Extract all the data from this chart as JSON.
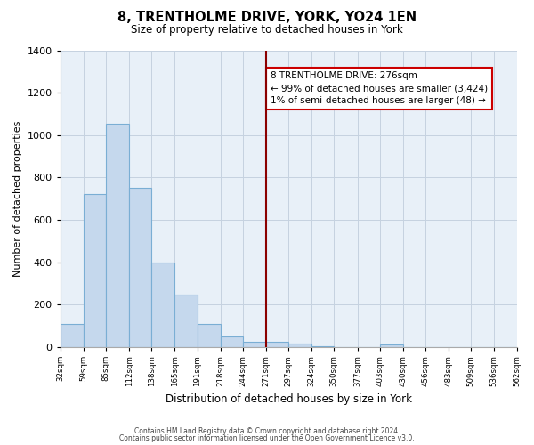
{
  "title": "8, TRENTHOLME DRIVE, YORK, YO24 1EN",
  "subtitle": "Size of property relative to detached houses in York",
  "xlabel": "Distribution of detached houses by size in York",
  "ylabel": "Number of detached properties",
  "bar_color": "#c5d8ed",
  "bar_edge_color": "#7aaed4",
  "background_color": "#e8f0f8",
  "grid_color": "#c5d2e0",
  "bins": [
    32,
    59,
    85,
    112,
    138,
    165,
    191,
    218,
    244,
    271,
    297,
    324,
    350,
    377,
    403,
    430,
    456,
    483,
    509,
    536,
    562
  ],
  "values": [
    110,
    720,
    1055,
    750,
    400,
    245,
    110,
    50,
    25,
    25,
    15,
    5,
    0,
    0,
    10,
    0,
    0,
    0,
    0,
    0
  ],
  "property_line_x": 271,
  "property_line_color": "#8b0000",
  "annotation_line1": "8 TRENTHOLME DRIVE: 276sqm",
  "annotation_line2": "← 99% of detached houses are smaller (3,424)",
  "annotation_line3": "1% of semi-detached houses are larger (48) →",
  "annotation_box_color": "#ffffff",
  "annotation_border_color": "#cc0000",
  "ylim": [
    0,
    1400
  ],
  "yticks": [
    0,
    200,
    400,
    600,
    800,
    1000,
    1200,
    1400
  ],
  "footnote1": "Contains HM Land Registry data © Crown copyright and database right 2024.",
  "footnote2": "Contains public sector information licensed under the Open Government Licence v3.0."
}
